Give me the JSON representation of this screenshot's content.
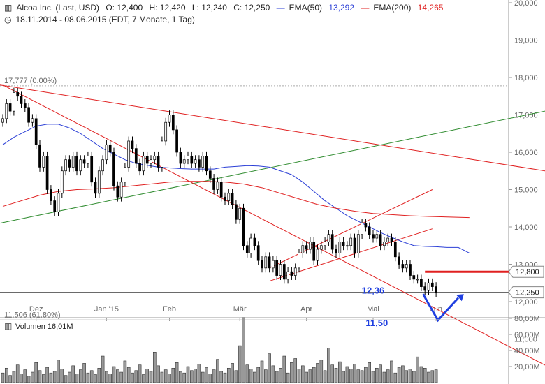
{
  "header": {
    "symbol_icon": "bar-chart-icon",
    "title": "Alcoa Inc. (Last, USD)",
    "open": "O: 12,400",
    "high": "H: 12,420",
    "low": "L: 12,240",
    "close": "C: 12,250",
    "ema50_label": "EMA(50)",
    "ema50_value": "13,292",
    "ema200_label": "EMA(200)",
    "ema200_value": "14,265",
    "clock_icon": "clock-icon",
    "range": "18.11.2014 - 08.06.2015 (EDT, 7 Monate, 1 Tag)"
  },
  "colors": {
    "ema50": "#2b3fd6",
    "ema200": "#e02020",
    "trend_green": "#2e8b2e",
    "trend_red": "#e02020",
    "arrow": "#1f3fe0",
    "candle_up": "#ffffff",
    "candle_down": "#000000"
  },
  "chart_data": {
    "type": "candlestick",
    "y_ticks": [
      "20,000",
      "19,000",
      "18,000",
      "17,000",
      "16,000",
      "15,000",
      "14,000",
      "13,000",
      "12,000",
      "11,000"
    ],
    "y_tick_values": [
      20,
      19,
      18,
      17,
      16,
      15,
      14,
      13,
      12,
      11
    ],
    "ylim": [
      10.5,
      20
    ],
    "x_ticks": [
      "Dez",
      "Jan '15",
      "Feb",
      "Mär",
      "Apr",
      "Mai",
      "Jun"
    ],
    "x_tick_days": [
      9,
      28,
      45,
      64,
      82,
      100,
      117
    ],
    "x_days_total": 135,
    "fib_levels": [
      {
        "label": "17,777 (0.00%)",
        "value": 17.777
      },
      {
        "label": "11,506 (61.80%)",
        "value": 11.506
      }
    ],
    "price_tags": [
      {
        "label": "12,800",
        "value": 12.8
      },
      {
        "label": "12,250",
        "value": 12.25
      }
    ],
    "annotations": [
      {
        "label": "12,36",
        "value": 12.36
      },
      {
        "label": "11,50",
        "value": 11.5
      }
    ],
    "horizontal_level": {
      "value": 12.8,
      "from_day": 114
    },
    "close_line": 12.25,
    "closes": [
      16.9,
      17.3,
      17.1,
      17.6,
      17.5,
      17.3,
      17.2,
      16.8,
      16.9,
      16.2,
      15.6,
      15.9,
      15.0,
      14.7,
      14.4,
      14.9,
      15.5,
      15.8,
      15.6,
      15.9,
      15.5,
      15.8,
      15.7,
      15.9,
      15.2,
      14.9,
      15.5,
      15.8,
      16.2,
      16.0,
      15.1,
      14.8,
      15.2,
      15.6,
      16.3,
      16.1,
      15.7,
      15.5,
      15.9,
      15.7,
      15.8,
      15.9,
      15.6,
      16.3,
      16.8,
      17.0,
      16.6,
      16.0,
      15.7,
      15.8,
      15.9,
      15.7,
      15.8,
      15.6,
      15.9,
      15.5,
      15.3,
      15.0,
      15.2,
      14.8,
      14.7,
      14.9,
      14.6,
      14.2,
      14.5,
      13.5,
      13.3,
      13.7,
      13.5,
      13.1,
      12.9,
      13.2,
      12.9,
      13.1,
      12.7,
      13.0,
      12.6,
      12.8,
      12.7,
      12.9,
      13.3,
      13.5,
      13.4,
      13.6,
      13.1,
      13.4,
      13.5,
      13.6,
      13.8,
      13.4,
      13.3,
      13.6,
      13.5,
      13.5,
      13.7,
      13.3,
      13.8,
      14.1,
      14.0,
      13.8,
      13.7,
      13.8,
      13.5,
      13.6,
      13.7,
      13.6,
      13.2,
      13.0,
      12.9,
      13.0,
      12.7,
      12.6,
      12.6,
      12.4,
      12.3,
      12.5,
      12.4,
      12.25
    ],
    "ema50": [
      16.2,
      16.4,
      16.55,
      16.7,
      16.75,
      16.75,
      16.65,
      16.5,
      16.3,
      16.1,
      15.95,
      15.8,
      15.7,
      15.65,
      15.6,
      15.58,
      15.56,
      15.55,
      15.55,
      15.55,
      15.6,
      15.62,
      15.64,
      15.63,
      15.6,
      15.5,
      15.4,
      15.2,
      14.95,
      14.7,
      14.5,
      14.3,
      14.15,
      14.0,
      13.85,
      13.72,
      13.6,
      13.5,
      13.48,
      13.47,
      13.45,
      13.45,
      13.3
    ],
    "ema50_days": [
      0,
      3,
      6,
      9,
      12,
      15,
      18,
      21,
      24,
      27,
      30,
      33,
      36,
      39,
      42,
      45,
      48,
      51,
      54,
      57,
      60,
      63,
      66,
      69,
      72,
      75,
      78,
      81,
      84,
      87,
      90,
      93,
      96,
      99,
      102,
      105,
      108,
      111,
      114,
      117,
      120,
      123,
      126
    ],
    "ema200": [
      14.55,
      14.7,
      14.85,
      14.95,
      15.0,
      15.02,
      15.05,
      15.1,
      15.15,
      15.2,
      15.22,
      15.22,
      15.2,
      15.15,
      15.05,
      14.9,
      14.75,
      14.6,
      14.5,
      14.42,
      14.36,
      14.33,
      14.3,
      14.28,
      14.25
    ],
    "ema200_days": [
      0,
      5,
      10,
      15,
      20,
      25,
      30,
      35,
      40,
      45,
      50,
      55,
      60,
      65,
      70,
      75,
      80,
      85,
      90,
      95,
      100,
      105,
      110,
      115,
      126
    ],
    "volume_label": "Volumen",
    "volume_value": "16,01M",
    "volume_ticks": [
      "80,00M",
      "60,00M",
      "40,00M",
      "20,00M"
    ],
    "volume_tick_values": [
      80,
      60,
      40,
      20
    ],
    "volume_ylim": [
      0,
      80
    ],
    "volumes": [
      12,
      18,
      9,
      14,
      22,
      11,
      16,
      8,
      13,
      25,
      15,
      10,
      19,
      12,
      14,
      28,
      17,
      9,
      13,
      21,
      11,
      16,
      24,
      12,
      15,
      10,
      18,
      33,
      14,
      11,
      20,
      16,
      13,
      27,
      19,
      12,
      15,
      22,
      10,
      17,
      14,
      38,
      21,
      13,
      16,
      11,
      18,
      25,
      14,
      12,
      20,
      15,
      17,
      23,
      13,
      19,
      11,
      16,
      29,
      14,
      12,
      18,
      24,
      15,
      46,
      81,
      22,
      17,
      13,
      19,
      27,
      16,
      36,
      21,
      14,
      18,
      33,
      12,
      25,
      30,
      17,
      21,
      13,
      16,
      19,
      24,
      28,
      15,
      43,
      22,
      18,
      26,
      14,
      20,
      17,
      23,
      16,
      15,
      19,
      25,
      14,
      18,
      22,
      13,
      16,
      27,
      12,
      19,
      21,
      15,
      17,
      14,
      32,
      20,
      18,
      13,
      15,
      16
    ]
  }
}
